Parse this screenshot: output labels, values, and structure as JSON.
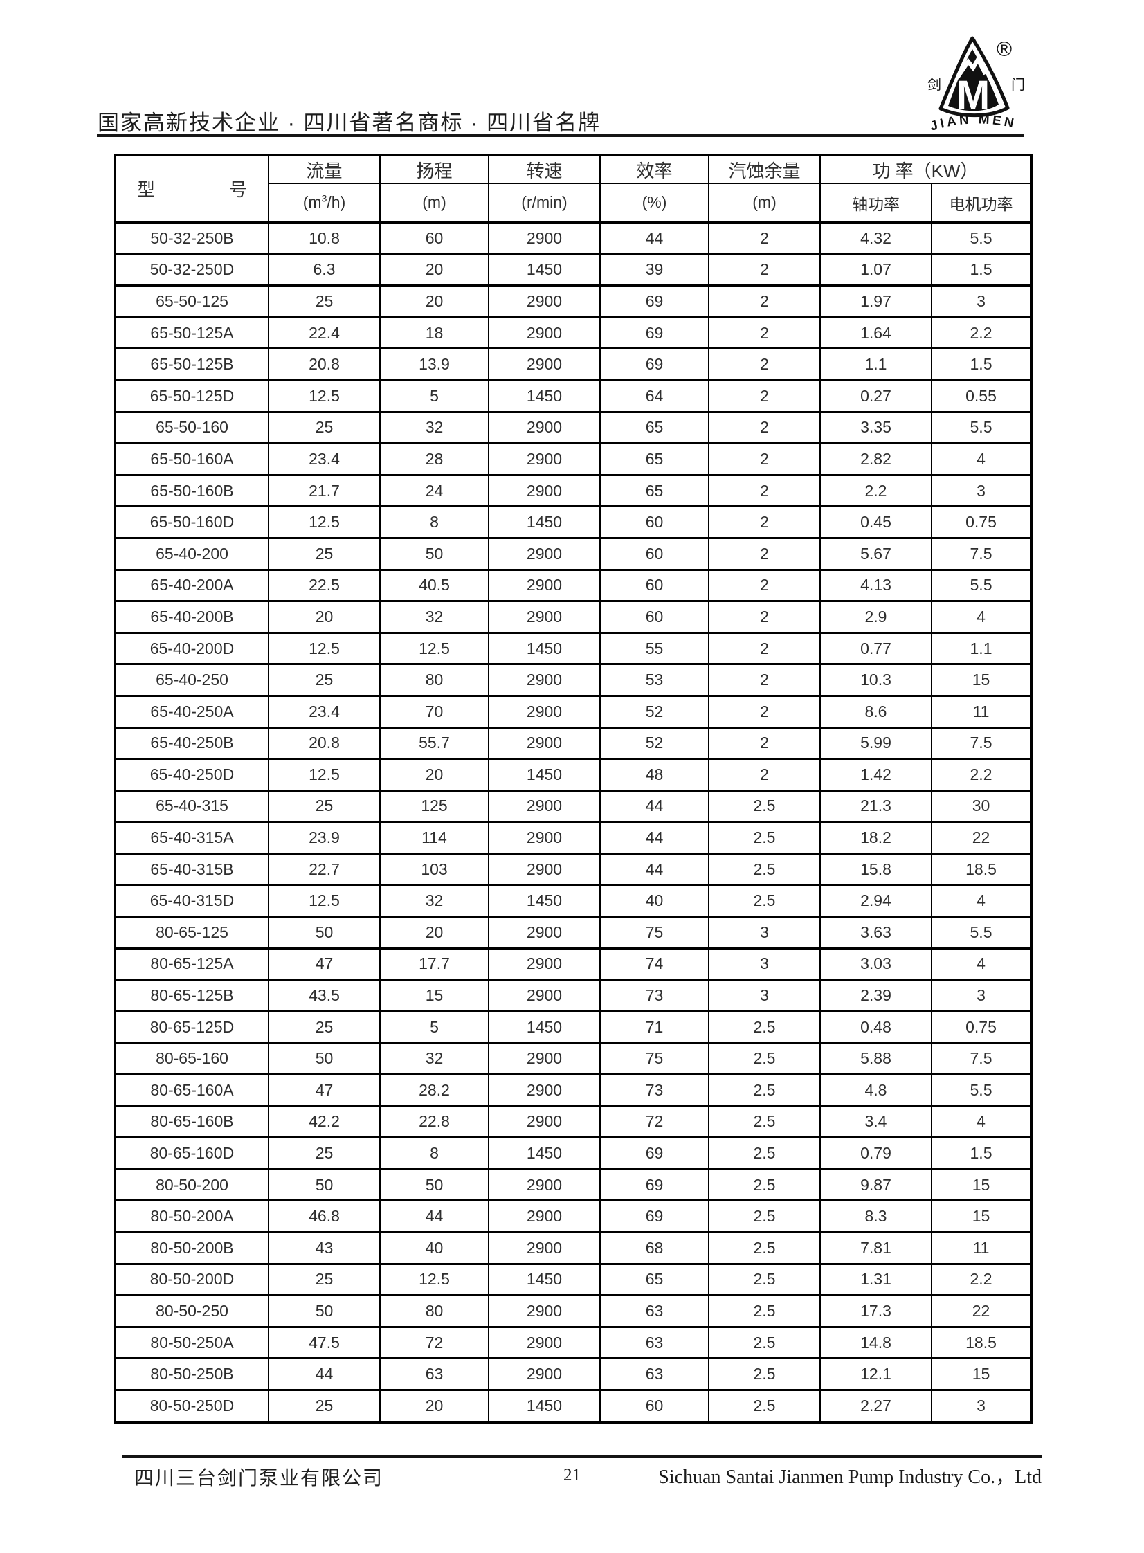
{
  "banner": {
    "slogan": "国家高新技术企业 · 四川省著名商标 · 四川省名牌"
  },
  "logo": {
    "cn_left": "剑",
    "cn_right": "门",
    "registered_mark": "®",
    "latin_name": "JIAN MEN",
    "mark_color": "#111111"
  },
  "table": {
    "headers": {
      "model_left": "型",
      "model_right": "号",
      "flow": "流量",
      "flow_unit": {
        "pre": "(m",
        "sup": "3",
        "post": "/h)"
      },
      "head": "扬程",
      "head_unit": "(m)",
      "speed": "转速",
      "speed_unit": "(r/min)",
      "efficiency": "效率",
      "efficiency_unit": "(%)",
      "npsh": "汽蚀余量",
      "npsh_unit": "(m)",
      "power_group": "功 率（KW）",
      "shaft_power": "轴功率",
      "motor_power": "电机功率"
    },
    "col_keys": [
      "model",
      "flow",
      "head",
      "speed",
      "efficiency",
      "npsh",
      "shaft-power",
      "motor-power"
    ],
    "rows": [
      [
        "50-32-250B",
        "10.8",
        "60",
        "2900",
        "44",
        "2",
        "4.32",
        "5.5"
      ],
      [
        "50-32-250D",
        "6.3",
        "20",
        "1450",
        "39",
        "2",
        "1.07",
        "1.5"
      ],
      [
        "65-50-125",
        "25",
        "20",
        "2900",
        "69",
        "2",
        "1.97",
        "3"
      ],
      [
        "65-50-125A",
        "22.4",
        "18",
        "2900",
        "69",
        "2",
        "1.64",
        "2.2"
      ],
      [
        "65-50-125B",
        "20.8",
        "13.9",
        "2900",
        "69",
        "2",
        "1.1",
        "1.5"
      ],
      [
        "65-50-125D",
        "12.5",
        "5",
        "1450",
        "64",
        "2",
        "0.27",
        "0.55"
      ],
      [
        "65-50-160",
        "25",
        "32",
        "2900",
        "65",
        "2",
        "3.35",
        "5.5"
      ],
      [
        "65-50-160A",
        "23.4",
        "28",
        "2900",
        "65",
        "2",
        "2.82",
        "4"
      ],
      [
        "65-50-160B",
        "21.7",
        "24",
        "2900",
        "65",
        "2",
        "2.2",
        "3"
      ],
      [
        "65-50-160D",
        "12.5",
        "8",
        "1450",
        "60",
        "2",
        "0.45",
        "0.75"
      ],
      [
        "65-40-200",
        "25",
        "50",
        "2900",
        "60",
        "2",
        "5.67",
        "7.5"
      ],
      [
        "65-40-200A",
        "22.5",
        "40.5",
        "2900",
        "60",
        "2",
        "4.13",
        "5.5"
      ],
      [
        "65-40-200B",
        "20",
        "32",
        "2900",
        "60",
        "2",
        "2.9",
        "4"
      ],
      [
        "65-40-200D",
        "12.5",
        "12.5",
        "1450",
        "55",
        "2",
        "0.77",
        "1.1"
      ],
      [
        "65-40-250",
        "25",
        "80",
        "2900",
        "53",
        "2",
        "10.3",
        "15"
      ],
      [
        "65-40-250A",
        "23.4",
        "70",
        "2900",
        "52",
        "2",
        "8.6",
        "11"
      ],
      [
        "65-40-250B",
        "20.8",
        "55.7",
        "2900",
        "52",
        "2",
        "5.99",
        "7.5"
      ],
      [
        "65-40-250D",
        "12.5",
        "20",
        "1450",
        "48",
        "2",
        "1.42",
        "2.2"
      ],
      [
        "65-40-315",
        "25",
        "125",
        "2900",
        "44",
        "2.5",
        "21.3",
        "30"
      ],
      [
        "65-40-315A",
        "23.9",
        "114",
        "2900",
        "44",
        "2.5",
        "18.2",
        "22"
      ],
      [
        "65-40-315B",
        "22.7",
        "103",
        "2900",
        "44",
        "2.5",
        "15.8",
        "18.5"
      ],
      [
        "65-40-315D",
        "12.5",
        "32",
        "1450",
        "40",
        "2.5",
        "2.94",
        "4"
      ],
      [
        "80-65-125",
        "50",
        "20",
        "2900",
        "75",
        "3",
        "3.63",
        "5.5"
      ],
      [
        "80-65-125A",
        "47",
        "17.7",
        "2900",
        "74",
        "3",
        "3.03",
        "4"
      ],
      [
        "80-65-125B",
        "43.5",
        "15",
        "2900",
        "73",
        "3",
        "2.39",
        "3"
      ],
      [
        "80-65-125D",
        "25",
        "5",
        "1450",
        "71",
        "2.5",
        "0.48",
        "0.75"
      ],
      [
        "80-65-160",
        "50",
        "32",
        "2900",
        "75",
        "2.5",
        "5.88",
        "7.5"
      ],
      [
        "80-65-160A",
        "47",
        "28.2",
        "2900",
        "73",
        "2.5",
        "4.8",
        "5.5"
      ],
      [
        "80-65-160B",
        "42.2",
        "22.8",
        "2900",
        "72",
        "2.5",
        "3.4",
        "4"
      ],
      [
        "80-65-160D",
        "25",
        "8",
        "1450",
        "69",
        "2.5",
        "0.79",
        "1.5"
      ],
      [
        "80-50-200",
        "50",
        "50",
        "2900",
        "69",
        "2.5",
        "9.87",
        "15"
      ],
      [
        "80-50-200A",
        "46.8",
        "44",
        "2900",
        "69",
        "2.5",
        "8.3",
        "15"
      ],
      [
        "80-50-200B",
        "43",
        "40",
        "2900",
        "68",
        "2.5",
        "7.81",
        "11"
      ],
      [
        "80-50-200D",
        "25",
        "12.5",
        "1450",
        "65",
        "2.5",
        "1.31",
        "2.2"
      ],
      [
        "80-50-250",
        "50",
        "80",
        "2900",
        "63",
        "2.5",
        "17.3",
        "22"
      ],
      [
        "80-50-250A",
        "47.5",
        "72",
        "2900",
        "63",
        "2.5",
        "14.8",
        "18.5"
      ],
      [
        "80-50-250B",
        "44",
        "63",
        "2900",
        "63",
        "2.5",
        "12.1",
        "15"
      ],
      [
        "80-50-250D",
        "25",
        "20",
        "1450",
        "60",
        "2.5",
        "2.27",
        "3"
      ]
    ]
  },
  "footer": {
    "company_cn": "四川三台剑门泵业有限公司",
    "page_number": "21",
    "company_en": "Sichuan Santai Jianmen Pump Industry Co.，Ltd"
  }
}
